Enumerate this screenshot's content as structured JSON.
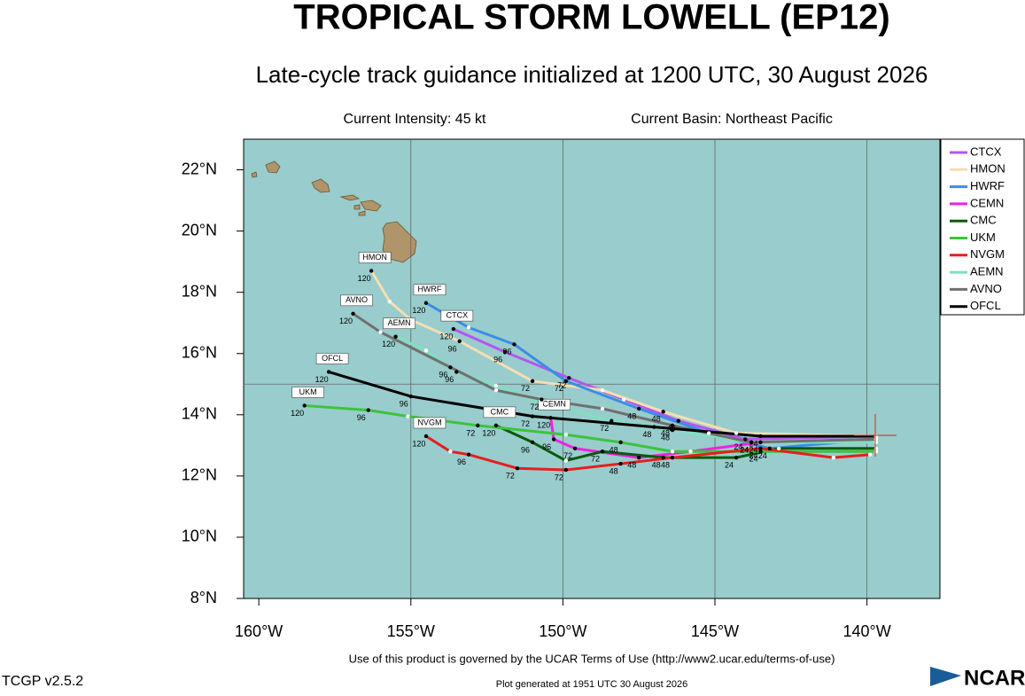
{
  "chart_data": {
    "type": "track-map",
    "title": "TROPICAL STORM LOWELL (EP12)",
    "subtitle": "Late-cycle track guidance initialized at 1200 UTC, 30 August 2026",
    "intensity_label": "Current Intensity: 45 kt",
    "basin_label": "Current Basin: Northeast Pacific",
    "terms_note": "Use of this product is governed by the UCAR Terms of Use (http://www2.ucar.edu/terms-of-use)",
    "version": "TCGP v2.5.2",
    "generated_note": "Plot generated at 1951 UTC   30 August 2026",
    "logo_text": "NCAR",
    "xlim": [
      -160.5,
      -137.6
    ],
    "ylim": [
      8,
      23
    ],
    "xticks": [
      {
        "value": -160,
        "label": "160°W"
      },
      {
        "value": -155,
        "label": "155°W"
      },
      {
        "value": -150,
        "label": "150°W"
      },
      {
        "value": -145,
        "label": "145°W"
      },
      {
        "value": -140,
        "label": "140°W"
      }
    ],
    "yticks": [
      {
        "value": 8,
        "label": "8°N"
      },
      {
        "value": 10,
        "label": "10°N"
      },
      {
        "value": 12,
        "label": "12°N"
      },
      {
        "value": 14,
        "label": "14°N"
      },
      {
        "value": 16,
        "label": "16°N"
      },
      {
        "value": 18,
        "label": "18°N"
      },
      {
        "value": 20,
        "label": "20°N"
      },
      {
        "value": 22,
        "label": "22°N"
      }
    ],
    "xgrid": [
      -155,
      -150,
      -145,
      -140
    ],
    "ygrid": [
      15
    ],
    "series": [
      {
        "name": "CTCX",
        "color": "#b455f0",
        "x": [
          -139.7,
          -144,
          -146.2,
          -148,
          -149.8,
          -151.9,
          -153.6
        ],
        "values": [
          13.3,
          13.2,
          13.8,
          14.5,
          15.2,
          16.05,
          16.8
        ],
        "point_labels": [
          null,
          "24",
          "48",
          null,
          "72",
          "96",
          "120"
        ]
      },
      {
        "name": "HMON",
        "color": "#f5deb3",
        "x": [
          -139.7,
          -144.3,
          -146.7,
          -148.7,
          -151,
          -153.4,
          -155,
          -155.7,
          -156.3
        ],
        "values": [
          13.3,
          13.4,
          14.1,
          14.8,
          15.1,
          16.4,
          17.1,
          17.7,
          18.7
        ],
        "point_labels": [
          null,
          null,
          "48",
          null,
          "72",
          "96",
          null,
          null,
          "120"
        ]
      },
      {
        "name": "HWRF",
        "color": "#3a8ee6",
        "x": [
          -139.7,
          -143.2,
          -145.2,
          -147.5,
          -149.9,
          -151.6,
          -153.1,
          -154.5
        ],
        "values": [
          13.2,
          12.9,
          13.4,
          14.2,
          15.1,
          16.3,
          16.85,
          17.65
        ],
        "point_labels": [
          null,
          "24",
          null,
          "48",
          "72",
          "96",
          null,
          "120"
        ]
      },
      {
        "name": "CEMN",
        "color": "#f020e0",
        "x": [
          -139.7,
          -143.5,
          -145.8,
          -147.5,
          -149.6,
          -150.3,
          -150.4
        ],
        "values": [
          13.2,
          13.1,
          12.8,
          12.6,
          12.9,
          13.2,
          13.9
        ],
        "point_labels": [
          null,
          "24",
          null,
          "48",
          "72",
          "96",
          "120"
        ]
      },
      {
        "name": "CMC",
        "color": "#0a5a0a",
        "x": [
          -139.7,
          -142.9,
          -144.3,
          -146.7,
          -148.7,
          -149.9,
          -151,
          -152.2
        ],
        "values": [
          12.9,
          12.9,
          12.6,
          12.6,
          12.8,
          12.5,
          13.1,
          13.65
        ],
        "point_labels": [
          null,
          null,
          "24",
          "48",
          "72",
          null,
          "96",
          "120"
        ]
      },
      {
        "name": "UKM",
        "color": "#3cc43c",
        "x": [
          -139.7,
          -143.5,
          -146.4,
          -148.1,
          -149.9,
          -152.8,
          -155.1,
          -156.4,
          -158.5
        ],
        "values": [
          12.8,
          12.8,
          12.8,
          13.1,
          13.35,
          13.65,
          13.95,
          14.15,
          14.3
        ],
        "point_labels": [
          null,
          "24",
          null,
          "48",
          null,
          "72",
          null,
          "96",
          "120"
        ]
      },
      {
        "name": "NVGM",
        "color": "#e61e1e",
        "x": [
          -139.9,
          -141.1,
          -143.5,
          -146.4,
          -148.1,
          -149.9,
          -151.5,
          -153.1,
          -153.7,
          -154.5
        ],
        "values": [
          12.7,
          12.6,
          12.9,
          12.6,
          12.4,
          12.2,
          12.25,
          12.7,
          12.8,
          13.3
        ],
        "point_labels": [
          null,
          null,
          "24",
          "48",
          "48",
          "72",
          "72",
          "96",
          null,
          "120"
        ]
      },
      {
        "name": "AEMN",
        "color": "#7ee0c0",
        "x": [
          -139.7,
          -143.8,
          -146.4,
          -148.4,
          -150.7,
          -152.2,
          -153.5,
          -154.5,
          -155.5
        ],
        "values": [
          13.1,
          13.1,
          13.5,
          13.8,
          14.4,
          14.95,
          15.4,
          16.1,
          16.55
        ],
        "point_labels": [
          null,
          "24",
          "48",
          "72",
          null,
          null,
          "96",
          null,
          "120"
        ]
      },
      {
        "name": "AVNO",
        "color": "#707070",
        "x": [
          -139.7,
          -143.8,
          -146.4,
          -148.7,
          -150.7,
          -152.2,
          -153.7,
          -156,
          -156.9
        ],
        "values": [
          13.2,
          13.1,
          13.65,
          14.2,
          14.5,
          14.8,
          15.55,
          16.7,
          17.3
        ],
        "point_labels": [
          null,
          "24",
          "48",
          null,
          "72",
          null,
          "96",
          null,
          "120"
        ]
      },
      {
        "name": "OFCL",
        "color": "#000000",
        "x": [
          -139.7,
          -143.5,
          -147,
          -151,
          -155,
          -157.7
        ],
        "values": [
          13.3,
          13.3,
          13.6,
          13.95,
          14.6,
          15.4
        ],
        "point_labels": [
          null,
          "24",
          "48",
          "72",
          "96",
          "120"
        ]
      }
    ]
  }
}
